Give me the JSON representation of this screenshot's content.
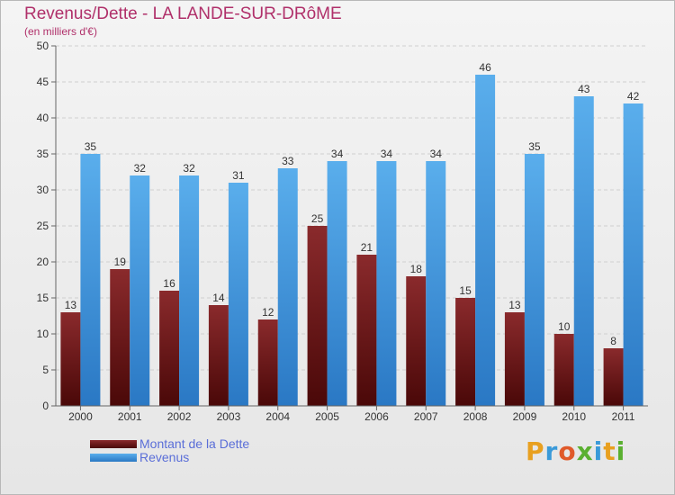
{
  "header": {
    "title": "Revenus/Dette - LA LANDE-SUR-DRôME",
    "subtitle": "(en milliers d'€)"
  },
  "chart_data": {
    "type": "bar",
    "categories": [
      "2000",
      "2001",
      "2002",
      "2003",
      "2004",
      "2005",
      "2006",
      "2007",
      "2008",
      "2009",
      "2010",
      "2011"
    ],
    "series": [
      {
        "name": "Montant de la Dette",
        "values": [
          13,
          19,
          16,
          14,
          12,
          25,
          21,
          18,
          15,
          13,
          10,
          8
        ],
        "color": "#7a1a1e"
      },
      {
        "name": "Revenus",
        "values": [
          35,
          32,
          32,
          31,
          33,
          34,
          34,
          34,
          46,
          35,
          43,
          42
        ],
        "color": "#4a9ee6"
      }
    ],
    "ylim": [
      0,
      50
    ],
    "yticks": [
      "0",
      "5",
      "10",
      "15",
      "20",
      "25",
      "30",
      "35",
      "40",
      "45",
      "50"
    ],
    "grid": true,
    "legend_position": "bottom-left"
  },
  "logo": {
    "letters": [
      "P",
      "r",
      "o",
      "x",
      "i",
      "t",
      "i"
    ],
    "colors": [
      "#e8a020",
      "#3a9ad9",
      "#e05a2a",
      "#5ab030",
      "#3a9ad9",
      "#e8a020",
      "#5ab030"
    ]
  }
}
